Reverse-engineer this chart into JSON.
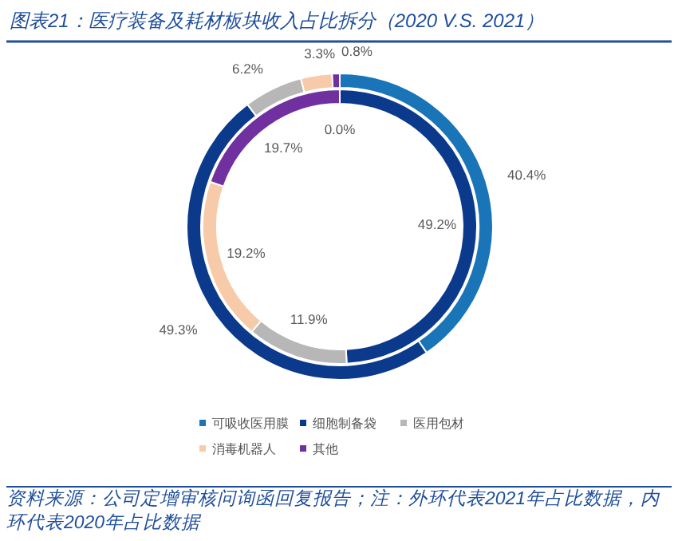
{
  "chart_data": {
    "type": "donut",
    "title": "图表21：医疗装备及耗材板块收入占比拆分（2020 V.S. 2021）",
    "categories": [
      "可吸收医用膜",
      "细胞制备袋",
      "医用包材",
      "消毒机器人",
      "其他"
    ],
    "colors": [
      "#1a74b8",
      "#0b3a8c",
      "#b7b7b7",
      "#f7caa9",
      "#7030a0"
    ],
    "series": [
      {
        "values": [
          40.4,
          49.3,
          6.2,
          3.3,
          0.8
        ],
        "value_labels": [
          "40.4%",
          "49.3%",
          "6.2%",
          "3.3%",
          "0.8%"
        ]
      },
      {
        "values": [
          0.0,
          49.2,
          11.9,
          19.2,
          19.7
        ],
        "value_labels": [
          "0.0%",
          "49.2%",
          "11.9%",
          "19.2%",
          "19.7%"
        ]
      }
    ],
    "legend": "bottom",
    "annotations": [
      "资料来源：公司定增审核问询函回复报告；注：外环代表2021年占比数据，内环代表2020年占比数据"
    ]
  }
}
